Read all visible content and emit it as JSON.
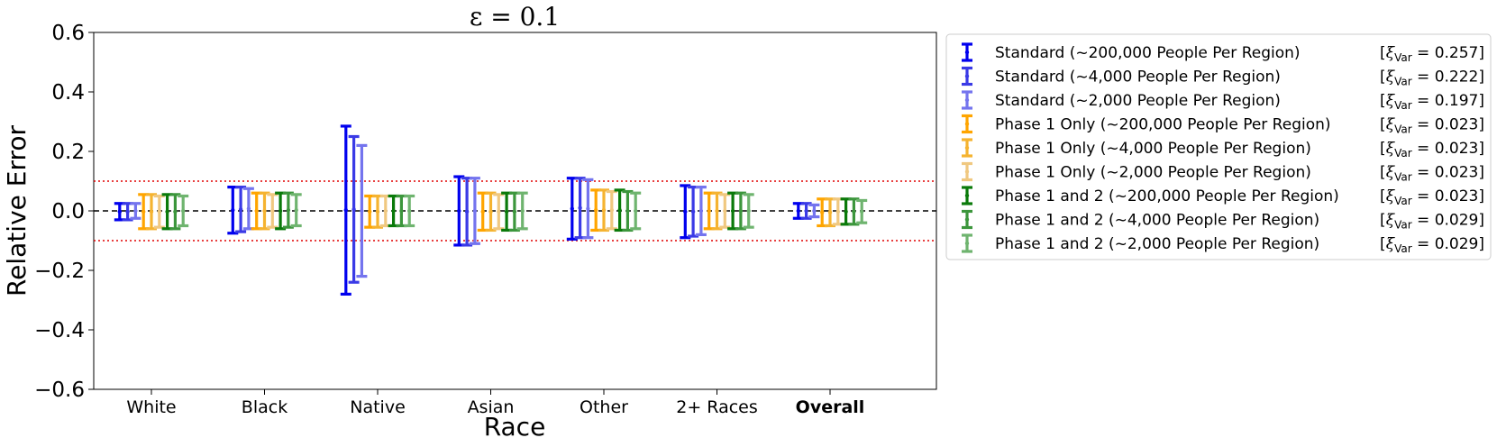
{
  "chart_data": {
    "type": "errorbar",
    "title": "ε = 0.1",
    "xlabel": "Race",
    "ylabel": "Relative Error",
    "ylim": [
      -0.6,
      0.6
    ],
    "yticks": [
      "0.6",
      "0.4",
      "0.2",
      "0.0",
      "−0.2",
      "−0.4",
      "−0.6"
    ],
    "ytick_values": [
      0.6,
      0.4,
      0.2,
      0.0,
      -0.2,
      -0.4,
      -0.6
    ],
    "categories": [
      "White",
      "Black",
      "Native",
      "Asian",
      "Other",
      "2+ Races",
      "Overall"
    ],
    "bold_categories": [
      "Overall"
    ],
    "reference_lines": [
      {
        "y": 0.0,
        "style": "dashed",
        "color": "#000000"
      },
      {
        "y": 0.1,
        "style": "dotted",
        "color": "#e00000"
      },
      {
        "y": -0.1,
        "style": "dotted",
        "color": "#e00000"
      }
    ],
    "legend_position": "outside-right",
    "series": [
      {
        "name": "Standard (~200,000 People Per Region)",
        "xi": "0.257",
        "color": "#0000ee",
        "low": [
          -0.03,
          -0.075,
          -0.28,
          -0.115,
          -0.095,
          -0.09,
          -0.025
        ],
        "high": [
          0.025,
          0.08,
          0.285,
          0.115,
          0.11,
          0.085,
          0.025
        ]
      },
      {
        "name": "Standard (~4,000 People Per Region)",
        "xi": "0.222",
        "color": "#3a3ae6",
        "low": [
          -0.03,
          -0.07,
          -0.24,
          -0.115,
          -0.09,
          -0.085,
          -0.025
        ],
        "high": [
          0.025,
          0.08,
          0.25,
          0.11,
          0.11,
          0.08,
          0.025
        ]
      },
      {
        "name": "Standard (~2,000 People Per Region)",
        "xi": "0.197",
        "color": "#7474ee",
        "low": [
          -0.025,
          -0.06,
          -0.22,
          -0.11,
          -0.09,
          -0.08,
          -0.02
        ],
        "high": [
          0.025,
          0.075,
          0.22,
          0.11,
          0.105,
          0.08,
          0.02
        ]
      },
      {
        "name": "Phase 1 Only (~200,000 People Per Region)",
        "xi": "0.023",
        "color": "#ffa500",
        "low": [
          -0.06,
          -0.06,
          -0.055,
          -0.065,
          -0.065,
          -0.06,
          -0.05
        ],
        "high": [
          0.055,
          0.06,
          0.05,
          0.06,
          0.07,
          0.06,
          0.04
        ]
      },
      {
        "name": "Phase 1 Only (~4,000 People Per Region)",
        "xi": "0.023",
        "color": "#f5b330",
        "low": [
          -0.06,
          -0.06,
          -0.055,
          -0.065,
          -0.065,
          -0.06,
          -0.05
        ],
        "high": [
          0.055,
          0.06,
          0.05,
          0.06,
          0.07,
          0.06,
          0.04
        ]
      },
      {
        "name": "Phase 1 Only (~2,000 People Per Region)",
        "xi": "0.023",
        "color": "#f0c880",
        "low": [
          -0.055,
          -0.055,
          -0.05,
          -0.06,
          -0.06,
          -0.055,
          -0.045
        ],
        "high": [
          0.05,
          0.055,
          0.05,
          0.055,
          0.065,
          0.055,
          0.04
        ]
      },
      {
        "name": "Phase 1 and 2 (~200,000 People Per Region)",
        "xi": "0.023",
        "color": "#0a7a0a",
        "low": [
          -0.06,
          -0.06,
          -0.05,
          -0.065,
          -0.065,
          -0.06,
          -0.045
        ],
        "high": [
          0.055,
          0.06,
          0.05,
          0.06,
          0.07,
          0.06,
          0.04
        ]
      },
      {
        "name": "Phase 1 and 2 (~4,000 People Per Region)",
        "xi": "0.029",
        "color": "#3c963c",
        "low": [
          -0.06,
          -0.055,
          -0.05,
          -0.065,
          -0.065,
          -0.06,
          -0.045
        ],
        "high": [
          0.055,
          0.06,
          0.05,
          0.06,
          0.065,
          0.06,
          0.04
        ]
      },
      {
        "name": "Phase 1 and 2 (~2,000 People Per Region)",
        "xi": "0.029",
        "color": "#6fb46f",
        "low": [
          -0.05,
          -0.05,
          -0.05,
          -0.06,
          -0.06,
          -0.055,
          -0.04
        ],
        "high": [
          0.05,
          0.055,
          0.05,
          0.06,
          0.06,
          0.055,
          0.035
        ]
      }
    ]
  }
}
